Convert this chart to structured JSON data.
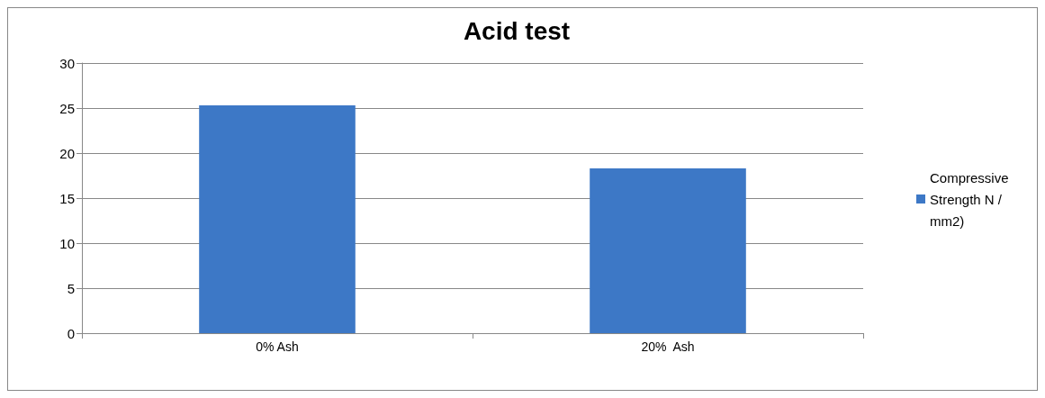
{
  "chart_data": {
    "type": "bar",
    "title": "Acid test",
    "categories": [
      "0% Ash",
      "20%  Ash"
    ],
    "series": [
      {
        "name": "Compressive Strength N /mm2)",
        "color": "#3d78c6",
        "values": [
          25.3,
          18.3
        ]
      }
    ],
    "ylim": [
      0,
      30
    ],
    "yticks": [
      0,
      5,
      10,
      15,
      20,
      25,
      30
    ],
    "grid": "y",
    "legend": "right"
  }
}
